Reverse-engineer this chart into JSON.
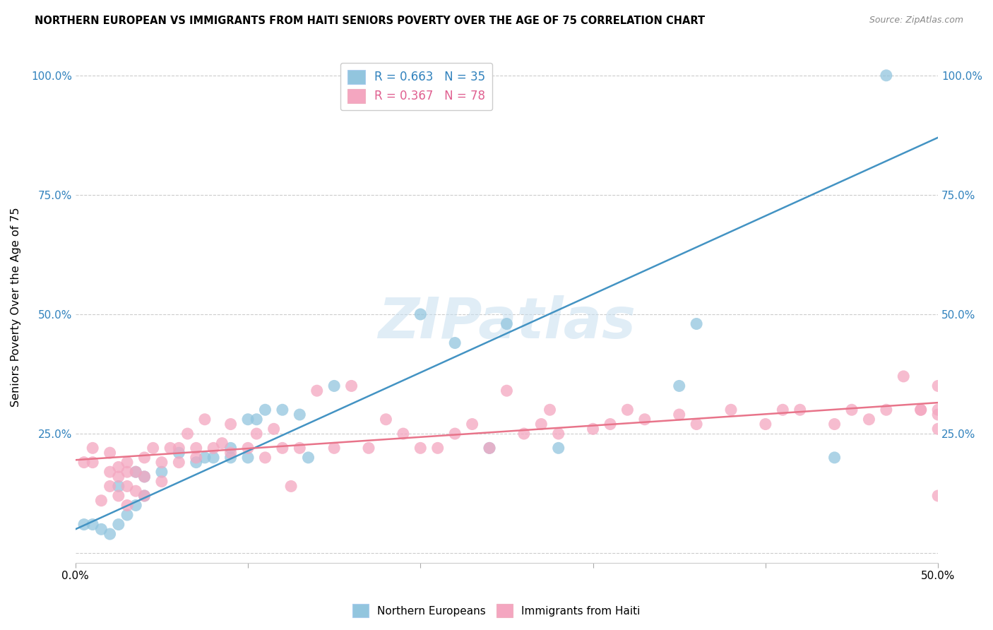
{
  "title": "NORTHERN EUROPEAN VS IMMIGRANTS FROM HAITI SENIORS POVERTY OVER THE AGE OF 75 CORRELATION CHART",
  "source": "Source: ZipAtlas.com",
  "ylabel": "Seniors Poverty Over the Age of 75",
  "xlim": [
    0.0,
    0.5
  ],
  "ylim": [
    -0.02,
    1.05
  ],
  "legend1_label": "R = 0.663   N = 35",
  "legend2_label": "R = 0.367   N = 78",
  "blue_color": "#92c5de",
  "pink_color": "#f4a6c0",
  "blue_line_color": "#4393c3",
  "pink_line_color": "#e8748a",
  "watermark": "ZIPatlas",
  "blue_line_x0": 0.0,
  "blue_line_y0": 0.05,
  "blue_line_x1": 0.5,
  "blue_line_y1": 0.87,
  "pink_line_x0": 0.0,
  "pink_line_y0": 0.195,
  "pink_line_x1": 0.5,
  "pink_line_y1": 0.315,
  "blue_scatter_x": [
    0.005,
    0.01,
    0.015,
    0.02,
    0.025,
    0.025,
    0.03,
    0.035,
    0.035,
    0.04,
    0.04,
    0.05,
    0.06,
    0.07,
    0.075,
    0.08,
    0.09,
    0.09,
    0.1,
    0.1,
    0.105,
    0.11,
    0.12,
    0.13,
    0.135,
    0.15,
    0.2,
    0.22,
    0.24,
    0.25,
    0.28,
    0.35,
    0.36,
    0.44,
    0.47
  ],
  "blue_scatter_y": [
    0.06,
    0.06,
    0.05,
    0.04,
    0.06,
    0.14,
    0.08,
    0.1,
    0.17,
    0.12,
    0.16,
    0.17,
    0.21,
    0.19,
    0.2,
    0.2,
    0.2,
    0.22,
    0.2,
    0.28,
    0.28,
    0.3,
    0.3,
    0.29,
    0.2,
    0.35,
    0.5,
    0.44,
    0.22,
    0.48,
    0.22,
    0.35,
    0.48,
    0.2,
    1.0
  ],
  "pink_scatter_x": [
    0.005,
    0.01,
    0.01,
    0.015,
    0.02,
    0.02,
    0.02,
    0.025,
    0.025,
    0.025,
    0.03,
    0.03,
    0.03,
    0.03,
    0.035,
    0.035,
    0.04,
    0.04,
    0.04,
    0.045,
    0.05,
    0.05,
    0.055,
    0.06,
    0.06,
    0.065,
    0.07,
    0.07,
    0.075,
    0.08,
    0.085,
    0.09,
    0.09,
    0.1,
    0.105,
    0.11,
    0.115,
    0.12,
    0.125,
    0.13,
    0.14,
    0.15,
    0.16,
    0.17,
    0.18,
    0.19,
    0.2,
    0.21,
    0.22,
    0.23,
    0.24,
    0.25,
    0.26,
    0.27,
    0.275,
    0.28,
    0.3,
    0.31,
    0.32,
    0.33,
    0.35,
    0.36,
    0.38,
    0.4,
    0.41,
    0.42,
    0.44,
    0.45,
    0.46,
    0.47,
    0.48,
    0.49,
    0.49,
    0.5,
    0.5,
    0.5,
    0.5,
    0.5
  ],
  "pink_scatter_y": [
    0.19,
    0.19,
    0.22,
    0.11,
    0.14,
    0.17,
    0.21,
    0.12,
    0.16,
    0.18,
    0.1,
    0.14,
    0.17,
    0.19,
    0.13,
    0.17,
    0.12,
    0.16,
    0.2,
    0.22,
    0.15,
    0.19,
    0.22,
    0.19,
    0.22,
    0.25,
    0.2,
    0.22,
    0.28,
    0.22,
    0.23,
    0.21,
    0.27,
    0.22,
    0.25,
    0.2,
    0.26,
    0.22,
    0.14,
    0.22,
    0.34,
    0.22,
    0.35,
    0.22,
    0.28,
    0.25,
    0.22,
    0.22,
    0.25,
    0.27,
    0.22,
    0.34,
    0.25,
    0.27,
    0.3,
    0.25,
    0.26,
    0.27,
    0.3,
    0.28,
    0.29,
    0.27,
    0.3,
    0.27,
    0.3,
    0.3,
    0.27,
    0.3,
    0.28,
    0.3,
    0.37,
    0.3,
    0.3,
    0.35,
    0.29,
    0.12,
    0.26,
    0.3
  ]
}
